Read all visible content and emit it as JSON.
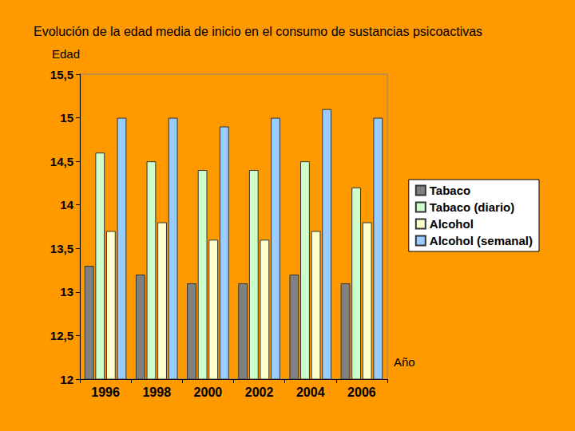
{
  "chart_data": {
    "type": "bar",
    "title": "Evolución de la edad media de inicio en el consumo de sustancias psicoactivas",
    "y_label": "Edad",
    "x_label": "Año",
    "categories": [
      "1996",
      "1998",
      "2000",
      "2002",
      "2004",
      "2006"
    ],
    "series": [
      {
        "name": "Tabaco",
        "color": "#808080",
        "values": [
          13.3,
          13.2,
          13.1,
          13.1,
          13.2,
          13.1
        ]
      },
      {
        "name": "Tabaco (diario)",
        "color": "#ccffcc",
        "values": [
          14.6,
          14.5,
          14.4,
          14.4,
          14.5,
          14.2
        ]
      },
      {
        "name": "Alcohol",
        "color": "#ffffcc",
        "values": [
          13.7,
          13.8,
          13.6,
          13.6,
          13.7,
          13.8
        ]
      },
      {
        "name": "Alcohol (semanal)",
        "color": "#99ccff",
        "values": [
          15.0,
          15.0,
          14.9,
          15.0,
          15.1,
          15.0
        ]
      }
    ],
    "ylim": [
      12,
      15.5
    ],
    "yticks": [
      12,
      {
        "value": 12.5,
        "label": "12,5"
      },
      13,
      {
        "value": 13.5,
        "label": "13,5"
      },
      14,
      {
        "value": 14.5,
        "label": "14,5"
      },
      15,
      {
        "value": 15.5,
        "label": "15,5"
      }
    ],
    "grid": false,
    "legend": "right"
  }
}
